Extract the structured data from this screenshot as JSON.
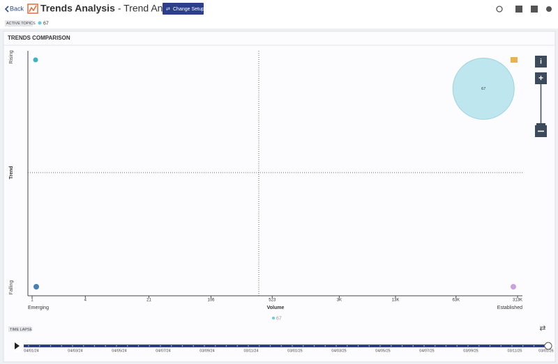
{
  "header": {
    "back": "Back",
    "title": "Trends Analysis",
    "subtitle": "- Trend Analysis",
    "button": "Change Setup"
  },
  "active_topics": {
    "label": "ACTIVE TOPICS",
    "topics": [
      "67"
    ]
  },
  "section_title": "TRENDS COMPARISON",
  "chart_data": {
    "type": "bubble",
    "y_label": "Trend",
    "y_top": "Rising",
    "y_bottom": "Falling",
    "x_label": "Volume",
    "x_left": "Emerging",
    "x_right": "Established",
    "xscale": "log",
    "xlim": [
      1,
      313000
    ],
    "xticks": [
      1,
      4,
      21,
      106,
      523,
      {
        "value": 3000,
        "label": "3K"
      },
      {
        "value": 13000,
        "label": "13K"
      },
      {
        "value": 63000,
        "label": "63K"
      },
      {
        "value": 313000,
        "label": "313K"
      }
    ],
    "ylim": [
      -1,
      1
    ],
    "series": [
      {
        "name": "67",
        "color": "#bde6ee",
        "x": [
          129000
        ],
        "values": [
          0.69
        ]
      }
    ]
  },
  "time_lapse": {
    "label": "TIME LAPSE",
    "dates": [
      "04/01/24",
      "04/03/24",
      "04/05/24",
      "04/07/24",
      "03/09/24",
      "03/11/24",
      "03/01/25",
      "04/03/25",
      "04/05/25",
      "04/07/25",
      "03/09/25",
      "03/11/25",
      "03/01/26"
    ]
  }
}
